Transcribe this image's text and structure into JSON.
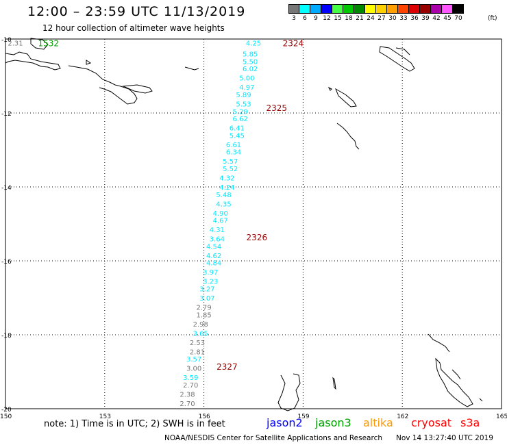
{
  "header": {
    "title": "12:00 – 23:59 UTC 11/13/2019",
    "subtitle": "12 hour collection of altimeter wave heights"
  },
  "scale": {
    "labels": [
      "3",
      "6",
      "9",
      "12",
      "15",
      "18",
      "21",
      "24",
      "27",
      "30",
      "33",
      "36",
      "39",
      "42",
      "45",
      "70"
    ],
    "colors": [
      "#777777",
      "#00ffff",
      "#00aaff",
      "#0000ff",
      "#44ff44",
      "#00c800",
      "#008800",
      "#ffff00",
      "#ffd000",
      "#ffa000",
      "#ff4400",
      "#dd0000",
      "#990000",
      "#aa00aa",
      "#ff55ff",
      "#000000"
    ],
    "unit": "(ft)"
  },
  "map": {
    "lat_labels": [
      "-10",
      "-12",
      "-14",
      "-16",
      "-18",
      "-20"
    ],
    "lon_labels": [
      "150",
      "153",
      "156",
      "159",
      "162",
      "165"
    ],
    "lat_values": [
      -10,
      -12,
      -14,
      -16,
      -18,
      -20
    ],
    "lon_values": [
      150,
      153,
      156,
      159,
      162,
      165
    ]
  },
  "passes": [
    {
      "id": "2324",
      "satellite": "cryosat"
    },
    {
      "id": "2325",
      "satellite": "cryosat"
    },
    {
      "id": "2326",
      "satellite": "cryosat"
    },
    {
      "id": "2327",
      "satellite": "cryosat"
    },
    {
      "id": "1532",
      "satellite": "jason3"
    }
  ],
  "observations": [
    {
      "lat": -10.1,
      "lon": 157.5,
      "v": "4.25",
      "c": "cyan"
    },
    {
      "lat": -10.4,
      "lon": 157.4,
      "v": "5.85",
      "c": "cyan"
    },
    {
      "lat": -10.6,
      "lon": 157.4,
      "v": "5.50",
      "c": "cyan"
    },
    {
      "lat": -10.8,
      "lon": 157.4,
      "v": "6.02",
      "c": "cyan"
    },
    {
      "lat": -11.05,
      "lon": 157.3,
      "v": "5.00",
      "c": "cyan"
    },
    {
      "lat": -11.3,
      "lon": 157.3,
      "v": "4.97",
      "c": "cyan"
    },
    {
      "lat": -11.5,
      "lon": 157.2,
      "v": "5.89",
      "c": "cyan"
    },
    {
      "lat": -11.75,
      "lon": 157.2,
      "v": "5.53",
      "c": "cyan"
    },
    {
      "lat": -11.95,
      "lon": 157.1,
      "v": "5.29",
      "c": "cyan"
    },
    {
      "lat": -12.15,
      "lon": 157.1,
      "v": "6.62",
      "c": "cyan"
    },
    {
      "lat": -12.4,
      "lon": 157.0,
      "v": "6.41",
      "c": "cyan"
    },
    {
      "lat": -12.6,
      "lon": 157.0,
      "v": "5.45",
      "c": "cyan"
    },
    {
      "lat": -12.85,
      "lon": 156.9,
      "v": "6.61",
      "c": "cyan"
    },
    {
      "lat": -13.05,
      "lon": 156.9,
      "v": "6.34",
      "c": "cyan"
    },
    {
      "lat": -13.3,
      "lon": 156.8,
      "v": "5.57",
      "c": "cyan"
    },
    {
      "lat": -13.5,
      "lon": 156.8,
      "v": "5.52",
      "c": "cyan"
    },
    {
      "lat": -13.75,
      "lon": 156.7,
      "v": "4.32",
      "c": "cyan"
    },
    {
      "lat": -14.0,
      "lon": 156.7,
      "v": "4.24",
      "c": "cyan"
    },
    {
      "lat": -14.2,
      "lon": 156.6,
      "v": "5.48",
      "c": "cyan"
    },
    {
      "lat": -14.45,
      "lon": 156.6,
      "v": "4.35",
      "c": "cyan"
    },
    {
      "lat": -14.7,
      "lon": 156.5,
      "v": "4.90",
      "c": "cyan"
    },
    {
      "lat": -14.9,
      "lon": 156.5,
      "v": "4.67",
      "c": "cyan"
    },
    {
      "lat": -15.15,
      "lon": 156.4,
      "v": "4.31",
      "c": "cyan"
    },
    {
      "lat": -15.4,
      "lon": 156.4,
      "v": "3.64",
      "c": "cyan"
    },
    {
      "lat": -15.6,
      "lon": 156.3,
      "v": "4.54",
      "c": "cyan"
    },
    {
      "lat": -15.85,
      "lon": 156.3,
      "v": "4.62",
      "c": "cyan"
    },
    {
      "lat": -16.05,
      "lon": 156.3,
      "v": "4.84",
      "c": "cyan"
    },
    {
      "lat": -16.3,
      "lon": 156.2,
      "v": "3.97",
      "c": "cyan"
    },
    {
      "lat": -16.55,
      "lon": 156.2,
      "v": "3.23",
      "c": "cyan"
    },
    {
      "lat": -16.75,
      "lon": 156.1,
      "v": "3.27",
      "c": "cyan"
    },
    {
      "lat": -17.0,
      "lon": 156.1,
      "v": "3.07",
      "c": "cyan"
    },
    {
      "lat": -17.25,
      "lon": 156.0,
      "v": "2.79",
      "c": "gray"
    },
    {
      "lat": -17.45,
      "lon": 156.0,
      "v": "1.85",
      "c": "gray"
    },
    {
      "lat": -17.7,
      "lon": 155.9,
      "v": "2.98",
      "c": "gray"
    },
    {
      "lat": -17.95,
      "lon": 155.9,
      "v": "3.65",
      "c": "cyan"
    },
    {
      "lat": -18.2,
      "lon": 155.8,
      "v": "2.53",
      "c": "gray"
    },
    {
      "lat": -18.45,
      "lon": 155.8,
      "v": "2.81",
      "c": "gray"
    },
    {
      "lat": -18.65,
      "lon": 155.7,
      "v": "3.57",
      "c": "cyan"
    },
    {
      "lat": -18.9,
      "lon": 155.7,
      "v": "3.00",
      "c": "gray"
    },
    {
      "lat": -19.15,
      "lon": 155.6,
      "v": "3.59",
      "c": "cyan"
    },
    {
      "lat": -19.35,
      "lon": 155.6,
      "v": "2.70",
      "c": "gray"
    },
    {
      "lat": -19.6,
      "lon": 155.5,
      "v": "2.38",
      "c": "gray"
    },
    {
      "lat": -19.85,
      "lon": 155.5,
      "v": "2.70",
      "c": "gray"
    },
    {
      "lat": -10.1,
      "lon": 150.3,
      "v": "2.31",
      "c": "gray"
    }
  ],
  "pass_labels": [
    {
      "lat": -10.1,
      "lon": 158.7,
      "v": "2324"
    },
    {
      "lat": -11.85,
      "lon": 158.2,
      "v": "2325"
    },
    {
      "lat": -15.35,
      "lon": 157.6,
      "v": "2326"
    },
    {
      "lat": -18.85,
      "lon": 156.7,
      "v": "2327"
    },
    {
      "lat": -10.1,
      "lon": 151.3,
      "v": "1532"
    }
  ],
  "footer": {
    "note": "note: 1) Time is in UTC; 2) SWH is in feet",
    "legend": [
      {
        "label": "jason2",
        "color": "#0000ff"
      },
      {
        "label": "jason3",
        "color": "#00a000"
      },
      {
        "label": "altika",
        "color": "#ff9900"
      },
      {
        "label": "cryosat",
        "color": "#ff0000"
      },
      {
        "label": "s3a",
        "color": "#ff0000"
      }
    ],
    "credit": "NOAA/NESDIS Center for Satellite Applications and Research",
    "timestamp": "Nov 14 13:27:40 UTC 2019"
  }
}
